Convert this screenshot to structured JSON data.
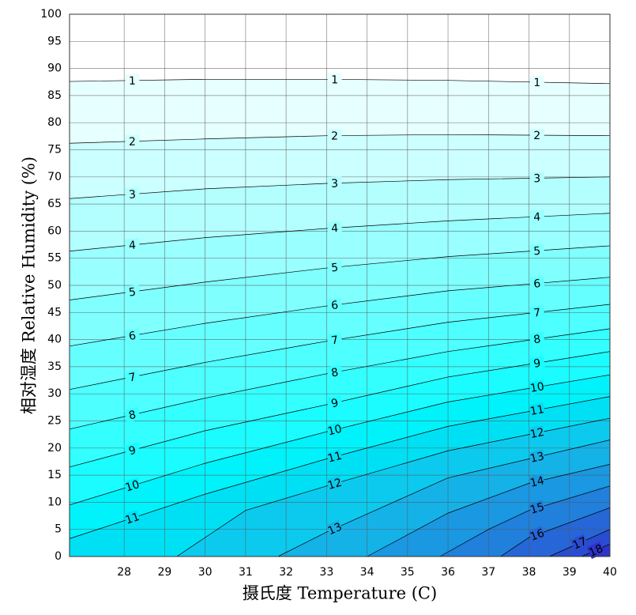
{
  "chart_data": {
    "type": "contour",
    "xlabel": "摄氏度 Temperature (C)",
    "ylabel": "相对湿度 Relative Humidity (%)",
    "xlim": [
      26.65,
      40
    ],
    "ylim": [
      0,
      100
    ],
    "xticks": [
      28,
      29,
      30,
      31,
      32,
      33,
      34,
      35,
      36,
      37,
      38,
      39,
      40
    ],
    "yticks": [
      0,
      5,
      10,
      15,
      20,
      25,
      30,
      35,
      40,
      45,
      50,
      55,
      60,
      65,
      70,
      75,
      80,
      85,
      90,
      95,
      100
    ],
    "grid": true,
    "contours": [
      {
        "level": 1,
        "color": "#e6ffff",
        "x": [
          26.65,
          30,
          33,
          36,
          40
        ],
        "y": [
          87.6,
          88,
          88,
          87.8,
          87.2
        ]
      },
      {
        "level": 2,
        "color": "#ccffff",
        "x": [
          26.65,
          30,
          33,
          36,
          40
        ],
        "y": [
          76.2,
          77,
          77.6,
          77.8,
          77.6
        ]
      },
      {
        "level": 3,
        "color": "#b3ffff",
        "x": [
          26.65,
          30,
          33,
          36,
          40
        ],
        "y": [
          66,
          67.8,
          68.8,
          69.5,
          70
        ]
      },
      {
        "level": 4,
        "color": "#99ffff",
        "x": [
          26.65,
          30,
          33,
          36,
          40
        ],
        "y": [
          56.3,
          58.8,
          60.5,
          61.9,
          63.3
        ]
      },
      {
        "level": 5,
        "color": "#80ffff",
        "x": [
          26.65,
          30,
          33,
          36,
          40
        ],
        "y": [
          47.3,
          50.6,
          53.2,
          55.3,
          57.3
        ]
      },
      {
        "level": 6,
        "color": "#66ffff",
        "x": [
          26.65,
          30,
          33,
          36,
          40
        ],
        "y": [
          38.8,
          43,
          46.2,
          49,
          51.5
        ]
      },
      {
        "level": 7,
        "color": "#4dffff",
        "x": [
          26.65,
          30,
          33,
          36,
          40
        ],
        "y": [
          30.8,
          35.8,
          39.7,
          43.2,
          46.5
        ]
      },
      {
        "level": 8,
        "color": "#33ffff",
        "x": [
          26.65,
          30,
          33,
          36,
          40
        ],
        "y": [
          23.5,
          29.2,
          33.7,
          37.8,
          42
        ]
      },
      {
        "level": 9,
        "color": "#1afcff",
        "x": [
          26.65,
          30,
          33,
          36,
          40
        ],
        "y": [
          16.5,
          23.2,
          28,
          33.1,
          37.8
        ]
      },
      {
        "level": 10,
        "color": "#00f2fa",
        "x": [
          26.65,
          30,
          33,
          36,
          40
        ],
        "y": [
          9.5,
          17.2,
          23,
          28.5,
          33.5
        ]
      },
      {
        "level": 11,
        "color": "#00e0f4",
        "x": [
          26.65,
          30,
          33,
          36,
          40
        ],
        "y": [
          3.3,
          11.5,
          18,
          24,
          29.5
        ]
      },
      {
        "level": 12,
        "color": "#0ccaee",
        "x": [
          29.3,
          31,
          33,
          36,
          40
        ],
        "y": [
          0,
          8.5,
          13,
          19.5,
          25.5
        ]
      },
      {
        "level": 13,
        "color": "#15b2e8",
        "x": [
          31.8,
          33,
          36,
          40
        ],
        "y": [
          0,
          4.5,
          14.5,
          21.5
        ]
      },
      {
        "level": 14,
        "color": "#1a98e2",
        "x": [
          34,
          36,
          38,
          40
        ],
        "y": [
          0,
          8,
          13.5,
          17
        ]
      },
      {
        "level": 15,
        "color": "#2080dc",
        "x": [
          35.8,
          37,
          38,
          40
        ],
        "y": [
          0,
          5,
          8.5,
          13
        ]
      },
      {
        "level": 16,
        "color": "#2666d6",
        "x": [
          37.3,
          38,
          40
        ],
        "y": [
          0,
          3.5,
          9
        ]
      },
      {
        "level": 17,
        "color": "#2a4cd0",
        "x": [
          38.5,
          40
        ],
        "y": [
          0,
          5
        ]
      },
      {
        "level": 18,
        "color": "#2e33ca",
        "x": [
          39.3,
          40
        ],
        "y": [
          0,
          2.3
        ]
      }
    ]
  }
}
